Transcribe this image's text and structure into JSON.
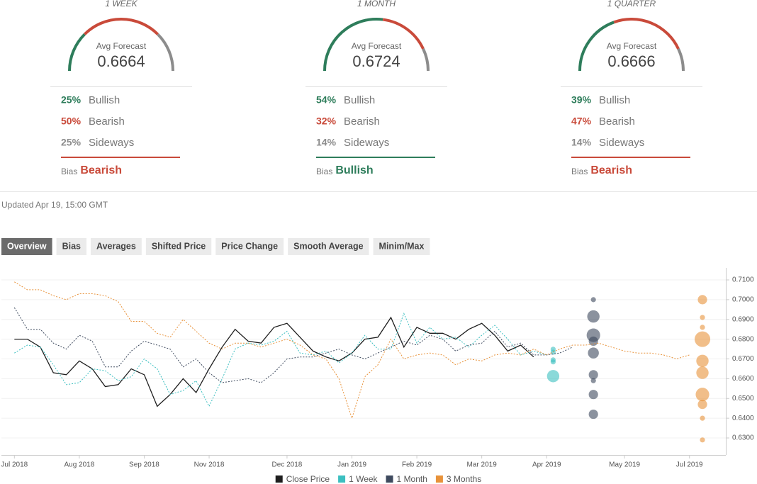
{
  "panels": [
    {
      "period": "1 WEEK",
      "gauge_label": "Avg Forecast",
      "avg": "0.6664",
      "rows": [
        {
          "value": 25,
          "label": "25%",
          "name": "Bullish",
          "color": "#2e7d5b"
        },
        {
          "value": 50,
          "label": "50%",
          "name": "Bearish",
          "color": "#c94a3a"
        },
        {
          "value": 25,
          "label": "25%",
          "name": "Sideways",
          "color": "#8c8c8c"
        }
      ],
      "bias_label": "Bias",
      "bias": "Bearish"
    },
    {
      "period": "1 MONTH",
      "gauge_label": "Avg Forecast",
      "avg": "0.6724",
      "rows": [
        {
          "value": 54,
          "label": "54%",
          "name": "Bullish",
          "color": "#2e7d5b"
        },
        {
          "value": 32,
          "label": "32%",
          "name": "Bearish",
          "color": "#c94a3a"
        },
        {
          "value": 14,
          "label": "14%",
          "name": "Sideways",
          "color": "#8c8c8c"
        }
      ],
      "bias_label": "Bias",
      "bias": "Bullish"
    },
    {
      "period": "1 QUARTER",
      "gauge_label": "Avg Forecast",
      "avg": "0.6666",
      "rows": [
        {
          "value": 39,
          "label": "39%",
          "name": "Bullish",
          "color": "#2e7d5b"
        },
        {
          "value": 47,
          "label": "47%",
          "name": "Bearish",
          "color": "#c94a3a"
        },
        {
          "value": 14,
          "label": "14%",
          "name": "Sideways",
          "color": "#8c8c8c"
        }
      ],
      "bias_label": "Bias",
      "bias": "Bearish"
    }
  ],
  "updated": "Updated Apr 19, 15:00 GMT",
  "tabs": [
    "Overview",
    "Bias",
    "Averages",
    "Shifted Price",
    "Price Change",
    "Smooth Average",
    "Minim/Max"
  ],
  "active_tab": "Overview",
  "chart_data": {
    "type": "line",
    "categories": [
      "Jul 2018",
      null,
      null,
      null,
      null,
      "Aug 2018",
      null,
      null,
      null,
      null,
      "Sep 2018",
      null,
      null,
      null,
      null,
      "Nov 2018",
      null,
      null,
      null,
      null,
      null,
      "Dec 2018",
      null,
      null,
      null,
      null,
      "Jan 2019",
      null,
      null,
      null,
      null,
      "Feb 2019",
      null,
      null,
      null,
      null,
      "Mar 2019",
      null,
      null,
      null,
      null,
      "Apr 2019",
      null,
      null,
      null,
      null,
      null,
      "May 2019",
      null,
      null,
      null,
      null,
      "Jul 2019"
    ],
    "xlim": [
      -1,
      54.8
    ],
    "ylim": [
      0.6214,
      0.7161
    ],
    "yticks": [
      {
        "value": 0.63,
        "label": "0.6300"
      },
      {
        "value": 0.64,
        "label": "0.6400"
      },
      {
        "value": 0.65,
        "label": "0.6500"
      },
      {
        "value": 0.66,
        "label": "0.6600"
      },
      {
        "value": 0.67,
        "label": "0.6700"
      },
      {
        "value": 0.68,
        "label": "0.6800"
      },
      {
        "value": 0.69,
        "label": "0.6900"
      },
      {
        "value": 0.7,
        "label": "0.7000"
      },
      {
        "value": 0.71,
        "label": "0.7100"
      }
    ],
    "grid": true,
    "series": [
      {
        "name": "Close Price",
        "color": "#1e1e1e",
        "dashed": false,
        "values": [
          0.68,
          0.68,
          0.676,
          0.663,
          0.662,
          0.669,
          0.665,
          0.656,
          0.657,
          0.665,
          0.662,
          0.646,
          0.652,
          0.66,
          0.653,
          0.665,
          0.676,
          0.685,
          0.679,
          0.678,
          0.686,
          0.688,
          0.681,
          0.674,
          0.671,
          0.669,
          0.673,
          0.68,
          0.681,
          0.691,
          0.676,
          0.686,
          0.683,
          0.683,
          0.68,
          0.685,
          0.688,
          0.682,
          0.674,
          0.677,
          0.671,
          null,
          null,
          null,
          null,
          null,
          null,
          null,
          null,
          null,
          null,
          null,
          null
        ]
      },
      {
        "name": "1 Week",
        "color": "#3cbfc0",
        "dashed": true,
        "values": [
          0.673,
          0.677,
          0.676,
          0.667,
          0.657,
          0.658,
          0.665,
          0.664,
          0.659,
          0.661,
          0.67,
          0.665,
          0.652,
          0.654,
          0.659,
          0.646,
          0.66,
          0.675,
          0.678,
          0.677,
          0.679,
          0.684,
          0.673,
          0.672,
          0.674,
          0.668,
          0.673,
          0.682,
          0.675,
          0.675,
          0.693,
          0.678,
          0.686,
          0.68,
          0.681,
          0.676,
          0.682,
          0.687,
          0.68,
          0.672,
          0.674,
          0.672,
          null,
          null,
          null,
          null,
          null,
          null,
          null,
          null,
          null,
          null,
          null
        ],
        "bubbles": {
          "x": [
            41.5,
            41.5,
            41.5,
            41.5,
            41.5
          ],
          "y": [
            0.6749,
            0.6734,
            0.6695,
            0.6685,
            0.6613
          ],
          "size": [
            1,
            1,
            1,
            1,
            4
          ]
        }
      },
      {
        "name": "1 Month",
        "color": "#3e4a5e",
        "dashed": true,
        "values": [
          0.696,
          0.685,
          0.685,
          0.678,
          0.675,
          0.682,
          0.679,
          0.666,
          0.666,
          0.674,
          0.679,
          0.677,
          0.675,
          0.666,
          0.67,
          0.663,
          0.658,
          0.659,
          0.66,
          0.658,
          0.663,
          0.67,
          0.671,
          0.671,
          0.673,
          0.675,
          0.672,
          0.67,
          0.673,
          0.676,
          0.679,
          0.677,
          0.682,
          0.68,
          0.674,
          0.677,
          0.678,
          0.684,
          0.676,
          0.678,
          0.672,
          0.672,
          0.673,
          0.676,
          null,
          null,
          null,
          null,
          null,
          null,
          null,
          null,
          null
        ],
        "bubbles": {
          "x": [
            44.6,
            44.6,
            44.6,
            44.6,
            44.6,
            44.6,
            44.6,
            44.6,
            44.6
          ],
          "y": [
            0.7,
            0.6915,
            0.682,
            0.679,
            0.673,
            0.662,
            0.659,
            0.652,
            0.642
          ],
          "size": [
            1,
            4,
            5,
            2,
            3,
            2,
            1,
            2,
            2
          ]
        }
      },
      {
        "name": "3 Months",
        "color": "#e8923a",
        "dashed": true,
        "values": [
          0.709,
          0.705,
          0.705,
          0.702,
          0.7,
          0.703,
          0.703,
          0.702,
          0.699,
          0.689,
          0.689,
          0.683,
          0.681,
          0.69,
          0.684,
          0.678,
          0.675,
          0.678,
          0.678,
          0.676,
          0.678,
          0.68,
          0.677,
          0.672,
          0.67,
          0.66,
          0.64,
          0.661,
          0.667,
          0.68,
          0.67,
          0.672,
          0.673,
          0.672,
          0.667,
          0.67,
          0.669,
          0.672,
          0.673,
          0.672,
          0.675,
          0.672,
          0.675,
          0.677,
          0.677,
          0.678,
          0.676,
          0.674,
          0.673,
          0.673,
          0.672,
          0.67,
          0.672
        ],
        "bubbles": {
          "x": [
            53,
            53,
            53,
            53,
            53,
            53,
            53,
            53,
            53,
            53
          ],
          "y": [
            0.7,
            0.691,
            0.686,
            0.68,
            0.669,
            0.663,
            0.652,
            0.647,
            0.64,
            0.629
          ],
          "size": [
            2,
            1,
            1,
            7,
            4,
            4,
            5,
            2,
            1,
            1
          ]
        }
      }
    ]
  }
}
